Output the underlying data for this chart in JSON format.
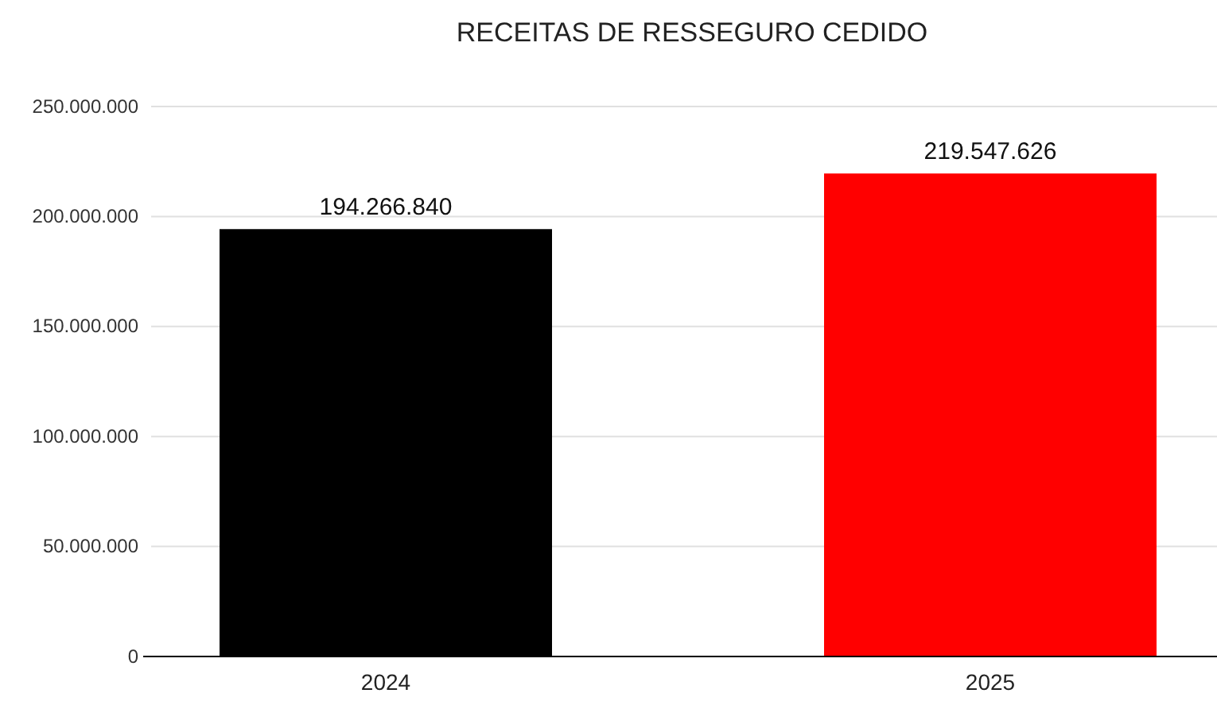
{
  "chart_data": {
    "type": "bar",
    "title": "RECEITAS DE RESSEGURO CEDIDO",
    "categories": [
      "2024",
      "2025"
    ],
    "values": [
      194266840,
      219547626
    ],
    "colors": [
      "#000000",
      "#ff0000"
    ],
    "value_labels": [
      "194.266.840",
      "219.547.626"
    ],
    "ylim": [
      0,
      250000000
    ],
    "yticks": [
      {
        "value": 0,
        "label": "0"
      },
      {
        "value": 50000000,
        "label": "50.000.000"
      },
      {
        "value": 100000000,
        "label": "100.000.000"
      },
      {
        "value": 150000000,
        "label": "150.000.000"
      },
      {
        "value": 200000000,
        "label": "200.000.000"
      },
      {
        "value": 250000000,
        "label": "250.000.000"
      }
    ],
    "grid": "y"
  }
}
